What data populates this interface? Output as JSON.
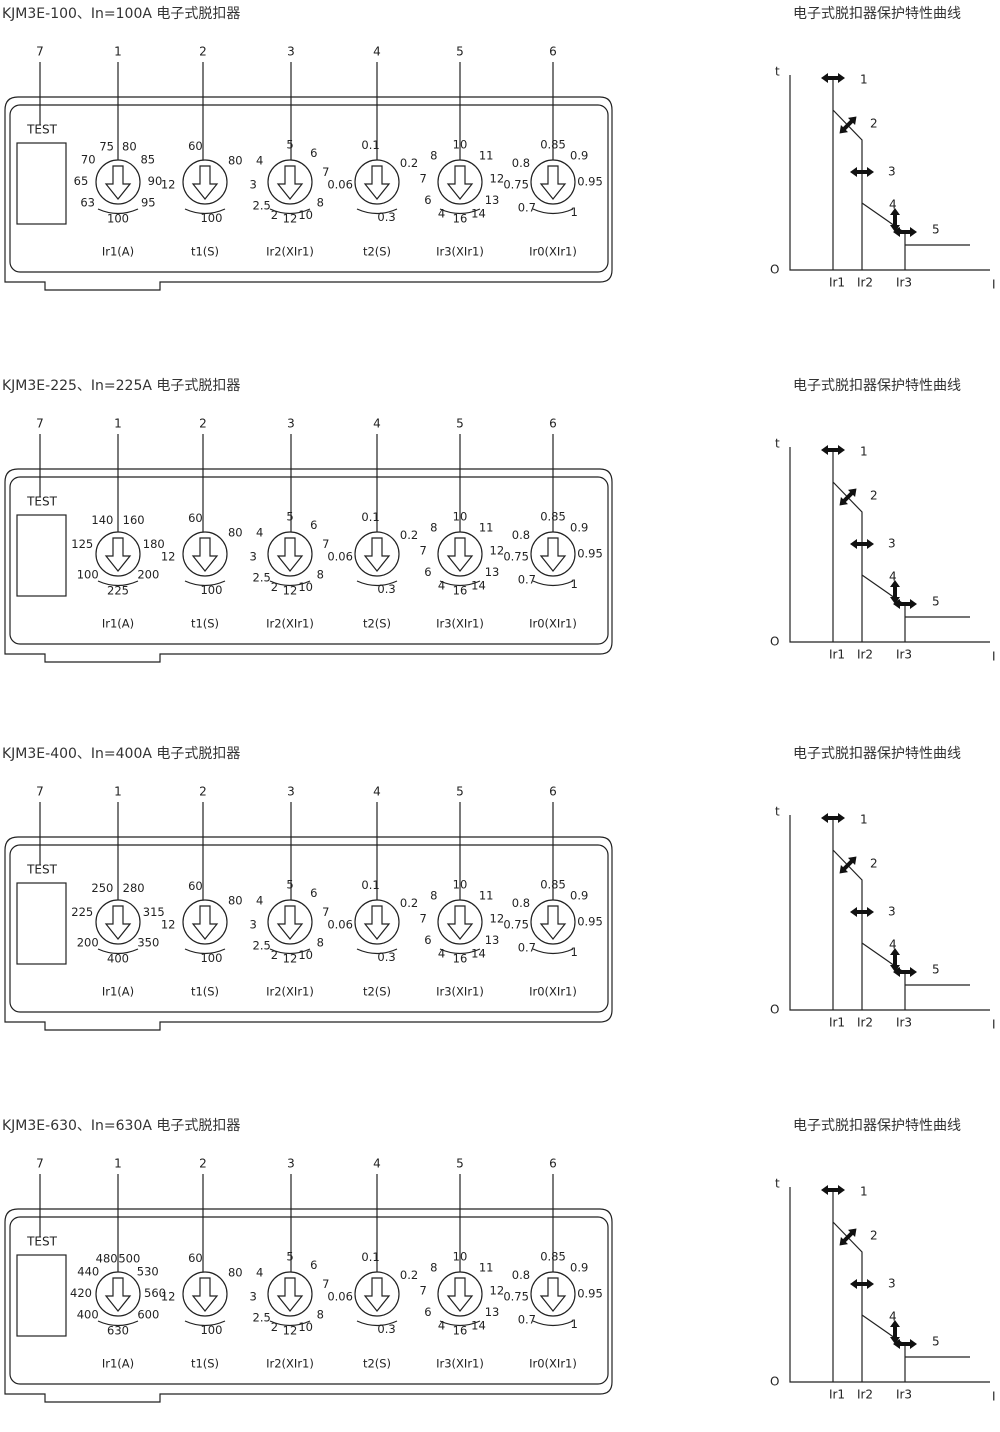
{
  "panels": [
    {
      "title": "KJM3E-100、In=100A 电子式脱扣器",
      "callouts": [
        "7",
        "1",
        "2",
        "3",
        "4",
        "5",
        "6"
      ],
      "test": "TEST",
      "dials": [
        {
          "labels": [
            "63",
            "65",
            "70",
            "75",
            "80",
            "85",
            "90",
            "95",
            "100"
          ],
          "name": "Ir1(A)"
        },
        {
          "labels": [
            "60",
            "80",
            "12",
            "100"
          ],
          "name": "t1(S)"
        },
        {
          "labels": [
            "2.5",
            "3",
            "4",
            "5",
            "6",
            "7",
            "8",
            "10",
            "12",
            "2"
          ],
          "name": "Ir2(XIr1)"
        },
        {
          "labels": [
            "0.1",
            "0.2",
            "0.06",
            "0.3"
          ],
          "name": "t2(S)"
        },
        {
          "labels": [
            "6",
            "7",
            "8",
            "10",
            "11",
            "12",
            "13",
            "14",
            "16",
            "4"
          ],
          "name": "Ir3(XIr1)"
        },
        {
          "labels": [
            "0.7",
            "0.75",
            "0.8",
            "0.85",
            "0.9",
            "0.95",
            "1"
          ],
          "name": "Ir0(XIr1)"
        }
      ],
      "curve": {
        "title": "电子式脱扣器保护特性曲线",
        "t": "t",
        "o": "O",
        "i": "I",
        "x_labels": [
          "Ir1",
          "Ir2",
          "Ir3"
        ],
        "markers": [
          "1",
          "2",
          "3",
          "4",
          "5"
        ]
      }
    },
    {
      "title": "KJM3E-225、In=225A 电子式脱扣器",
      "callouts": [
        "7",
        "1",
        "2",
        "3",
        "4",
        "5",
        "6"
      ],
      "test": "TEST",
      "dials": [
        {
          "labels": [
            "100",
            "125",
            "140",
            "160",
            "180",
            "200",
            "225"
          ],
          "name": "Ir1(A)"
        },
        {
          "labels": [
            "60",
            "80",
            "12",
            "100"
          ],
          "name": "t1(S)"
        },
        {
          "labels": [
            "2.5",
            "3",
            "4",
            "5",
            "6",
            "7",
            "8",
            "10",
            "12",
            "2"
          ],
          "name": "Ir2(XIr1)"
        },
        {
          "labels": [
            "0.1",
            "0.2",
            "0.06",
            "0.3"
          ],
          "name": "t2(S)"
        },
        {
          "labels": [
            "6",
            "7",
            "8",
            "10",
            "11",
            "12",
            "13",
            "14",
            "16",
            "4"
          ],
          "name": "Ir3(XIr1)"
        },
        {
          "labels": [
            "0.7",
            "0.75",
            "0.8",
            "0.85",
            "0.9",
            "0.95",
            "1"
          ],
          "name": "Ir0(XIr1)"
        }
      ],
      "curve": {
        "title": "电子式脱扣器保护特性曲线",
        "t": "t",
        "o": "O",
        "i": "I",
        "x_labels": [
          "Ir1",
          "Ir2",
          "Ir3"
        ],
        "markers": [
          "1",
          "2",
          "3",
          "4",
          "5"
        ]
      }
    },
    {
      "title": "KJM3E-400、In=400A 电子式脱扣器",
      "callouts": [
        "7",
        "1",
        "2",
        "3",
        "4",
        "5",
        "6"
      ],
      "test": "TEST",
      "dials": [
        {
          "labels": [
            "200",
            "225",
            "250",
            "280",
            "315",
            "350",
            "400"
          ],
          "name": "Ir1(A)"
        },
        {
          "labels": [
            "60",
            "80",
            "12",
            "100"
          ],
          "name": "t1(S)"
        },
        {
          "labels": [
            "2.5",
            "3",
            "4",
            "5",
            "6",
            "7",
            "8",
            "10",
            "12",
            "2"
          ],
          "name": "Ir2(XIr1)"
        },
        {
          "labels": [
            "0.1",
            "0.2",
            "0.06",
            "0.3"
          ],
          "name": "t2(S)"
        },
        {
          "labels": [
            "6",
            "7",
            "8",
            "10",
            "11",
            "12",
            "13",
            "14",
            "16",
            "4"
          ],
          "name": "Ir3(XIr1)"
        },
        {
          "labels": [
            "0.7",
            "0.75",
            "0.8",
            "0.85",
            "0.9",
            "0.95",
            "1"
          ],
          "name": "Ir0(XIr1)"
        }
      ],
      "curve": {
        "title": "电子式脱扣器保护特性曲线",
        "t": "t",
        "o": "O",
        "i": "I",
        "x_labels": [
          "Ir1",
          "Ir2",
          "Ir3"
        ],
        "markers": [
          "1",
          "2",
          "3",
          "4",
          "5"
        ]
      }
    },
    {
      "title": "KJM3E-630、In=630A 电子式脱扣器",
      "callouts": [
        "7",
        "1",
        "2",
        "3",
        "4",
        "5",
        "6"
      ],
      "test": "TEST",
      "dials": [
        {
          "labels": [
            "400",
            "420",
            "440",
            "480",
            "500",
            "530",
            "560",
            "600",
            "630"
          ],
          "name": "Ir1(A)"
        },
        {
          "labels": [
            "60",
            "80",
            "12",
            "100"
          ],
          "name": "t1(S)"
        },
        {
          "labels": [
            "2.5",
            "3",
            "4",
            "5",
            "6",
            "7",
            "8",
            "10",
            "12",
            "2"
          ],
          "name": "Ir2(XIr1)"
        },
        {
          "labels": [
            "0.1",
            "0.2",
            "0.06",
            "0.3"
          ],
          "name": "t2(S)"
        },
        {
          "labels": [
            "6",
            "7",
            "8",
            "10",
            "11",
            "12",
            "13",
            "14",
            "16",
            "4"
          ],
          "name": "Ir3(XIr1)"
        },
        {
          "labels": [
            "0.7",
            "0.75",
            "0.8",
            "0.85",
            "0.9",
            "0.95",
            "1"
          ],
          "name": "Ir0(XIr1)"
        }
      ],
      "curve": {
        "title": "电子式脱扣器保护特性曲线",
        "t": "t",
        "o": "O",
        "i": "I",
        "x_labels": [
          "Ir1",
          "Ir2",
          "Ir3"
        ],
        "markers": [
          "1",
          "2",
          "3",
          "4",
          "5"
        ]
      }
    }
  ]
}
